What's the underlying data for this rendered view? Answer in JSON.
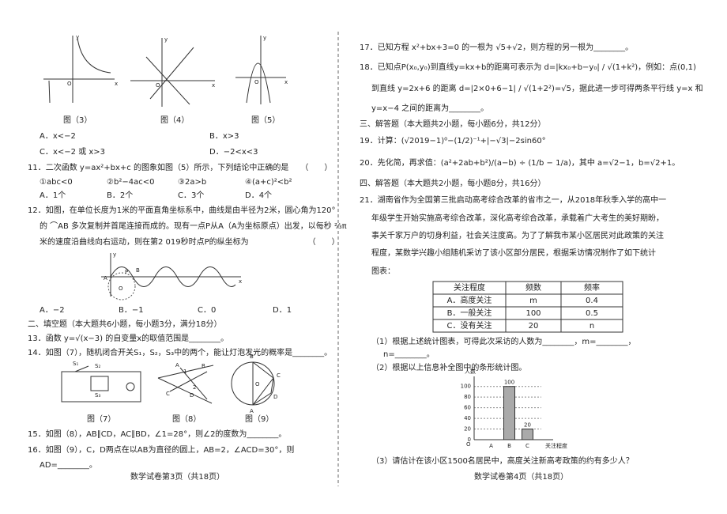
{
  "left": {
    "figures_top": [
      {
        "caption": "图（3）",
        "labels": [
          "y",
          "x",
          "O"
        ]
      },
      {
        "caption": "图（4）",
        "labels": [
          "y",
          "x",
          "O"
        ]
      },
      {
        "caption": "图（5）",
        "labels": [
          "y",
          "x",
          "O"
        ]
      }
    ],
    "q10_options": [
      "A．x<−2",
      "B．x>3",
      "C．x<−2 或 x>3",
      "D．−2<x<3"
    ],
    "q11": {
      "stem": "11．二次函数 y=ax²+bx+c 的图象如图（5）所示，下列结论中正确的是　　（　　）",
      "statements": [
        "①abc<0",
        "②b²−4ac<0",
        "③2a>b",
        "④(a+c)²<b²"
      ],
      "options": [
        "A．1个",
        "B．2个",
        "C．3个",
        "D．4个"
      ]
    },
    "q12": {
      "lines": [
        "12．如图，在单位长度为1米的平面直角坐标系中，曲线是由半径为2米，圆心角为120°",
        "的 ⌒AB 多次复制并首尾连接而成的。现有一点P从A（A为坐标原点）出发，以每秒 ⅔π",
        "米的速度沿曲线向右运动，则在第2 019秒时点P的纵坐标为　　　　　　　　（　　）"
      ],
      "figure_labels": [
        "y",
        "x",
        "A",
        "B",
        "O",
        "P"
      ],
      "options": [
        "A．−2",
        "B．−1",
        "C．0",
        "D．1"
      ]
    },
    "section2": "二、填空题（本大题共6小题，每小题3分，满分18分）",
    "q13": "13．函数 y=√(x−3) 的自变量x的取值范围是________。",
    "q14": "14．如图（7），随机闭合开关S₁，S₂，S₃中的两个，能让灯泡发光的概率是________。",
    "figures_bottom": [
      {
        "caption": "图（7）",
        "labels": [
          "S₁",
          "S₂",
          "S₃"
        ]
      },
      {
        "caption": "图（8）",
        "labels": [
          "A",
          "B",
          "C",
          "D",
          "1",
          "2"
        ]
      },
      {
        "caption": "图（9）",
        "labels": [
          "A",
          "B",
          "C",
          "D",
          "O"
        ]
      }
    ],
    "q15": "15．如图（8），AB∥CD，AC∥BD，∠1=28°，则∠2的度数为________。",
    "q16": [
      "16．如图（9），C，D两点在以AB为直径的圆上，AB=2，∠ACD=30°，则",
      "AD=________。"
    ],
    "footer": "数学试卷第3页（共18页）"
  },
  "right": {
    "q17": "17．已知方程 x²+bx+3=0 的一根为 √5+√2，则方程的另一根为________。",
    "q18": [
      "18．已知点P(x₀,y₀)到直线y=kx+b的距离可表示为 d=|kx₀+b−y₀| / √(1+k²)，例如：点(0,1)",
      "到直线 y=2x+6 的距离 d=|2×0+6−1| / √(1+2²)=√5，据此进一步可得两条平行线 y=x 和",
      "y=x−4 之间的距离为________。"
    ],
    "section3": "三、解答题（本大题共2小题，每小题6分，共12分）",
    "q19": "19．计算：(√2019−1)⁰−(1/2)⁻¹+|−√3|−2sin60°",
    "q20": "20．先化简，再求值：(a²+2ab+b²)/(a−b) ÷ (1/b − 1/a)，其中 a=√2−1，b=√2+1。",
    "section4": "四、解答题（本大题共2小题，每小题8分，共16分）",
    "q21": {
      "lines": [
        "21．湖南省作为全国第三批启动高考综合改革的省市之一，从2018年秋季入学的高中一",
        "年级学生开始实施高考综合改革，深化高考综合改革，承载着广大考生的美好期盼，",
        "事关千家万户的切身利益，社会关注度高。为了了解我市某小区居民对此政策的关注",
        "程度，某数学兴趣小组随机采访了该小区部分居民，根据采访情况制作了如下统计",
        "图表："
      ],
      "table": {
        "header": [
          "关注程度",
          "频数",
          "频率"
        ],
        "rows": [
          [
            "A．高度关注",
            "m",
            0.4
          ],
          [
            "B．一般关注",
            100,
            0.5
          ],
          [
            "C．没有关注",
            20,
            "n"
          ]
        ]
      },
      "part1": [
        "（1）根据上述统计图表，可得此次采访的人数为________，m=________，",
        "n=________。"
      ],
      "part2": "（2）根据以上信息补全图中的条形统计图。",
      "chart": {
        "type": "bar",
        "y_label": "人数",
        "x_label": "关注程度",
        "origin_label": "O",
        "categories": [
          "A",
          "B",
          "C"
        ],
        "values": [
          null,
          100,
          20
        ],
        "value_labels": [
          null,
          "100",
          "20"
        ],
        "ylim": [
          0,
          110
        ],
        "yticks": [
          0,
          20,
          40,
          60,
          80,
          100
        ],
        "color": "#aaaaaa"
      },
      "part3": "（3）请估计在该小区1500名居民中，高度关注新高考政策的约有多少人？"
    },
    "footer": "数学试卷第4页（共18页）"
  }
}
